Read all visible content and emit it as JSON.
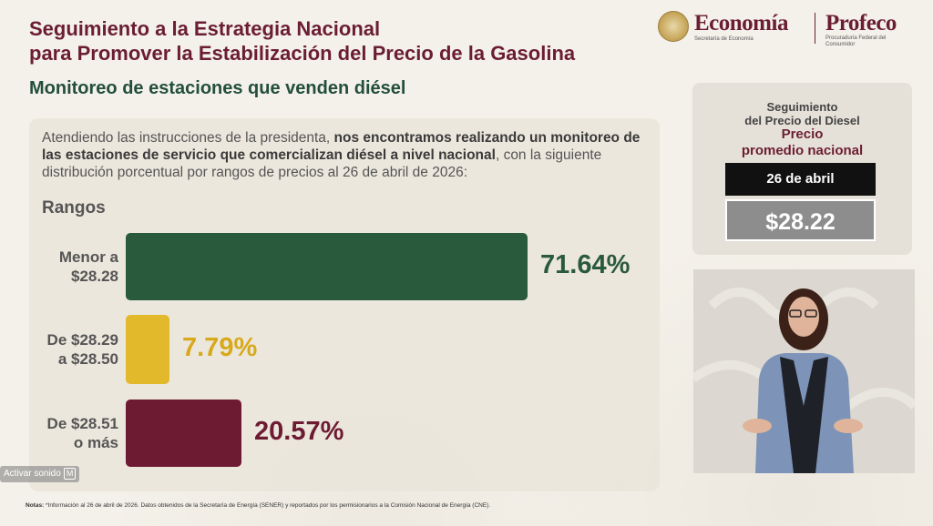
{
  "header": {
    "title_line1": "Seguimiento a la Estrategia Nacional",
    "title_line2": "para Promover la Estabilización del Precio de la Gasolina",
    "subtitle": "Monitoreo de estaciones que venden diésel"
  },
  "logos": {
    "economia": "Economía",
    "economia_sub": "Secretaría de Economía",
    "profeco": "Profeco",
    "profeco_sub": "Procuraduría Federal del Consumidor"
  },
  "intro": {
    "part1": "Atendiendo las instrucciones de la presidenta, ",
    "bold": "nos encontramos realizando un monitoreo de las estaciones de servicio que comercializan diésel a nivel nacional",
    "part2": ", con la siguiente distribución porcentual por rangos de precios al 26 de abril de 2026:"
  },
  "chart_data": {
    "type": "bar",
    "orientation": "horizontal",
    "legend_title": "Rangos",
    "categories": [
      {
        "line1": "Menor a",
        "line2": "$28.28"
      },
      {
        "line1": "De $28.29",
        "line2": "a $28.50"
      },
      {
        "line1": "De $28.51",
        "line2": "o más"
      }
    ],
    "values": [
      71.64,
      7.79,
      20.57
    ],
    "value_labels": [
      "71.64%",
      "7.79%",
      "20.57%"
    ],
    "colors": [
      "#2a5a3c",
      "#e3b92c",
      "#6d1b32"
    ],
    "xlim": [
      0,
      100
    ]
  },
  "side_card": {
    "line1": "Seguimiento",
    "line2": "del Precio del Diesel",
    "line3": "Precio",
    "line4": "promedio nacional",
    "date": "26 de abril",
    "price": "$28.22"
  },
  "audio": {
    "label": "Activar sonido",
    "key": "M"
  },
  "notes": {
    "label": "Notas:",
    "text": " *Información al 26 de abril de 2026. Datos obtenidos de la Secretaría de Energía (SENER) y reportados por los permisionarios a la Comisión Nacional de Energía (CNE)."
  },
  "icons": {
    "seal": "mexico-seal-icon",
    "interpreter": "sign-language-interpreter"
  }
}
